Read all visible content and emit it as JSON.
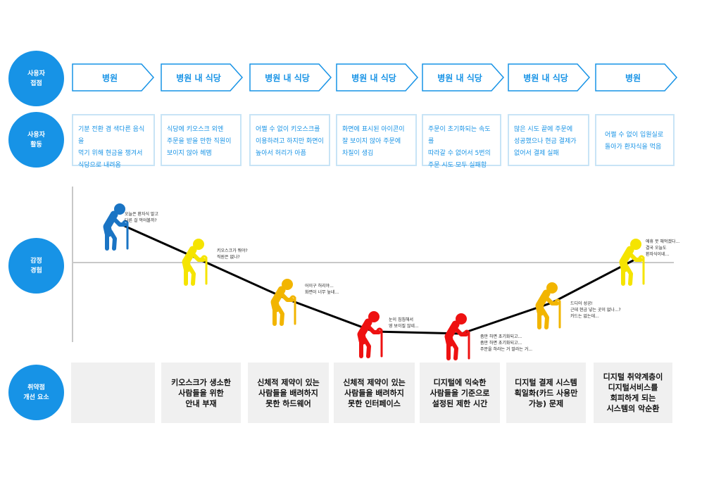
{
  "rows": {
    "touchpoint": "사용자\n접점",
    "activity": "사용자\n활동",
    "emotion": "감정\n경험",
    "improvement": "취약점\n개선 요소"
  },
  "touchpoints": [
    "병원",
    "병원 내 식당",
    "병원 내 식당",
    "병원 내 식당",
    "병원 내 식당",
    "병원 내 식당",
    "병원"
  ],
  "activities": [
    "기분 전환 겸 색다른 음식을\n먹기 위해 현금을 챙겨서\n식당으로 내려옴",
    "식당에 키오스크 외엔\n주문을 받을 만한 직원이\n보이지 않아 헤맴",
    "어쩔 수 없이 키오스크를\n이용하려고 하지만 화면이\n높아서 허리가 아픔",
    "화면에 표시된 아이콘이\n잘 보이지 않아 주문에\n차질이 생김",
    "주문이 초기화되는 속도를\n따라갈 수 없어서 5번의\n주문 시도 모두 실패함",
    "많은 시도 끝에 주문에\n성공했으나 현금 결제가\n없어서 결제 실패",
    "어쩔 수 없이 입원실로\n돌아가 환자식을 먹음"
  ],
  "emotions": [
    {
      "color": "#1a74c4",
      "text": "오늘은 환자식 말고\n다른 걸 먹어볼까?"
    },
    {
      "color": "#f5e400",
      "text": "키오스크가 뭐야?\n직원은 없나?"
    },
    {
      "color": "#f2b500",
      "text": "어이구 허리야...\n화면이 너무 높네..."
    },
    {
      "color": "#ee1111",
      "text": "눈이 침침해서\n영 보이질 않네..."
    },
    {
      "color": "#ee1111",
      "text": "좀만 하면 초기화되고...\n좀만 하면 초기화되고...\n주문을 하라는 거 말라는 거..."
    },
    {
      "color": "#f2b500",
      "text": "드디어 성공!\n근데 현금 넣는 곳이 없나...?\n카드는 없는데..."
    },
    {
      "color": "#f5e400",
      "text": "에휴 뭇 해먹겠다...\n결국 오늘도\n환자식이네..."
    }
  ],
  "improvements": [
    "",
    "키오스크가 생소한\n사람들을 위한\n안내 부재",
    "신체적 제약이 있는\n사람들을 배려하지\n못한 하드웨어",
    "신체적 제약이 있는\n사람들을 배려하지\n못한 인터페이스",
    "디지털에 익숙한\n사람들을 기준으로\n설정된 제한 시간",
    "디지털 결제 시스템\n획일화(카드 사용만\n가능) 문제",
    "디지털 취약계층이\n디지털서비스를\n회피하게 되는\n시스템의 악순환"
  ],
  "colors": {
    "primary": "#1793e6",
    "border": "#c8e4f6",
    "panel": "#f0f0f0"
  }
}
